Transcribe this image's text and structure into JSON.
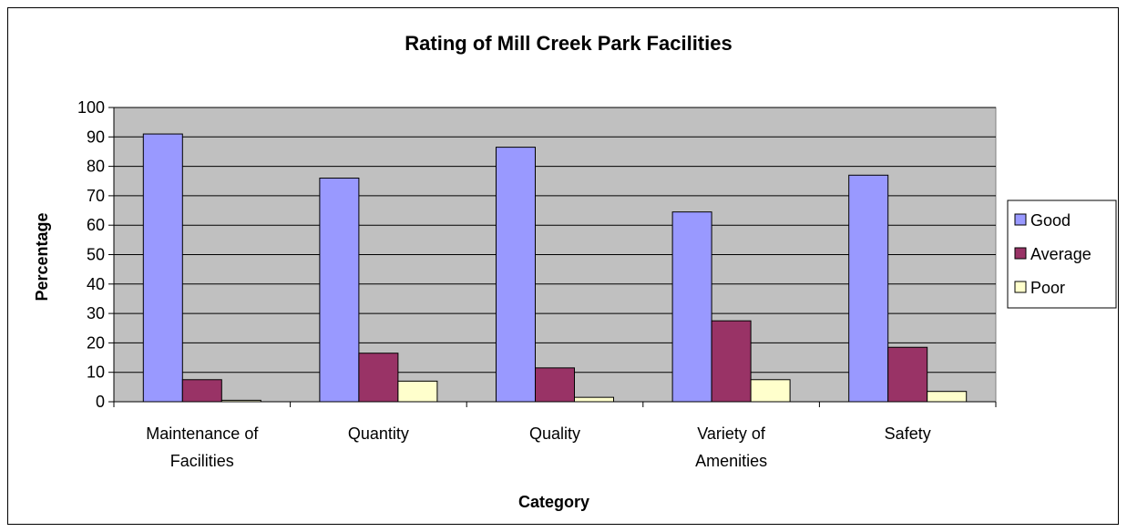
{
  "chart_data": {
    "type": "bar",
    "title": "Rating of Mill Creek Park Facilities",
    "xlabel": "Category",
    "ylabel": "Percentage",
    "ylim": [
      0,
      100
    ],
    "yticks": [
      0,
      10,
      20,
      30,
      40,
      50,
      60,
      70,
      80,
      90,
      100
    ],
    "grid": true,
    "legend_position": "right",
    "plot_background": "#c0c0c0",
    "categories": [
      [
        "Maintenance of",
        "Facilities"
      ],
      [
        "Quantity"
      ],
      [
        "Quality"
      ],
      [
        "Variety of",
        "Amenities"
      ],
      [
        "Safety"
      ]
    ],
    "series": [
      {
        "name": "Good",
        "color": "#9999ff",
        "values": [
          91,
          76,
          86.5,
          64.5,
          77
        ]
      },
      {
        "name": "Average",
        "color": "#993366",
        "values": [
          7.5,
          16.5,
          11.5,
          27.5,
          18.5
        ]
      },
      {
        "name": "Poor",
        "color": "#ffffcc",
        "values": [
          0.5,
          7,
          1.5,
          7.5,
          3.5
        ]
      }
    ]
  }
}
